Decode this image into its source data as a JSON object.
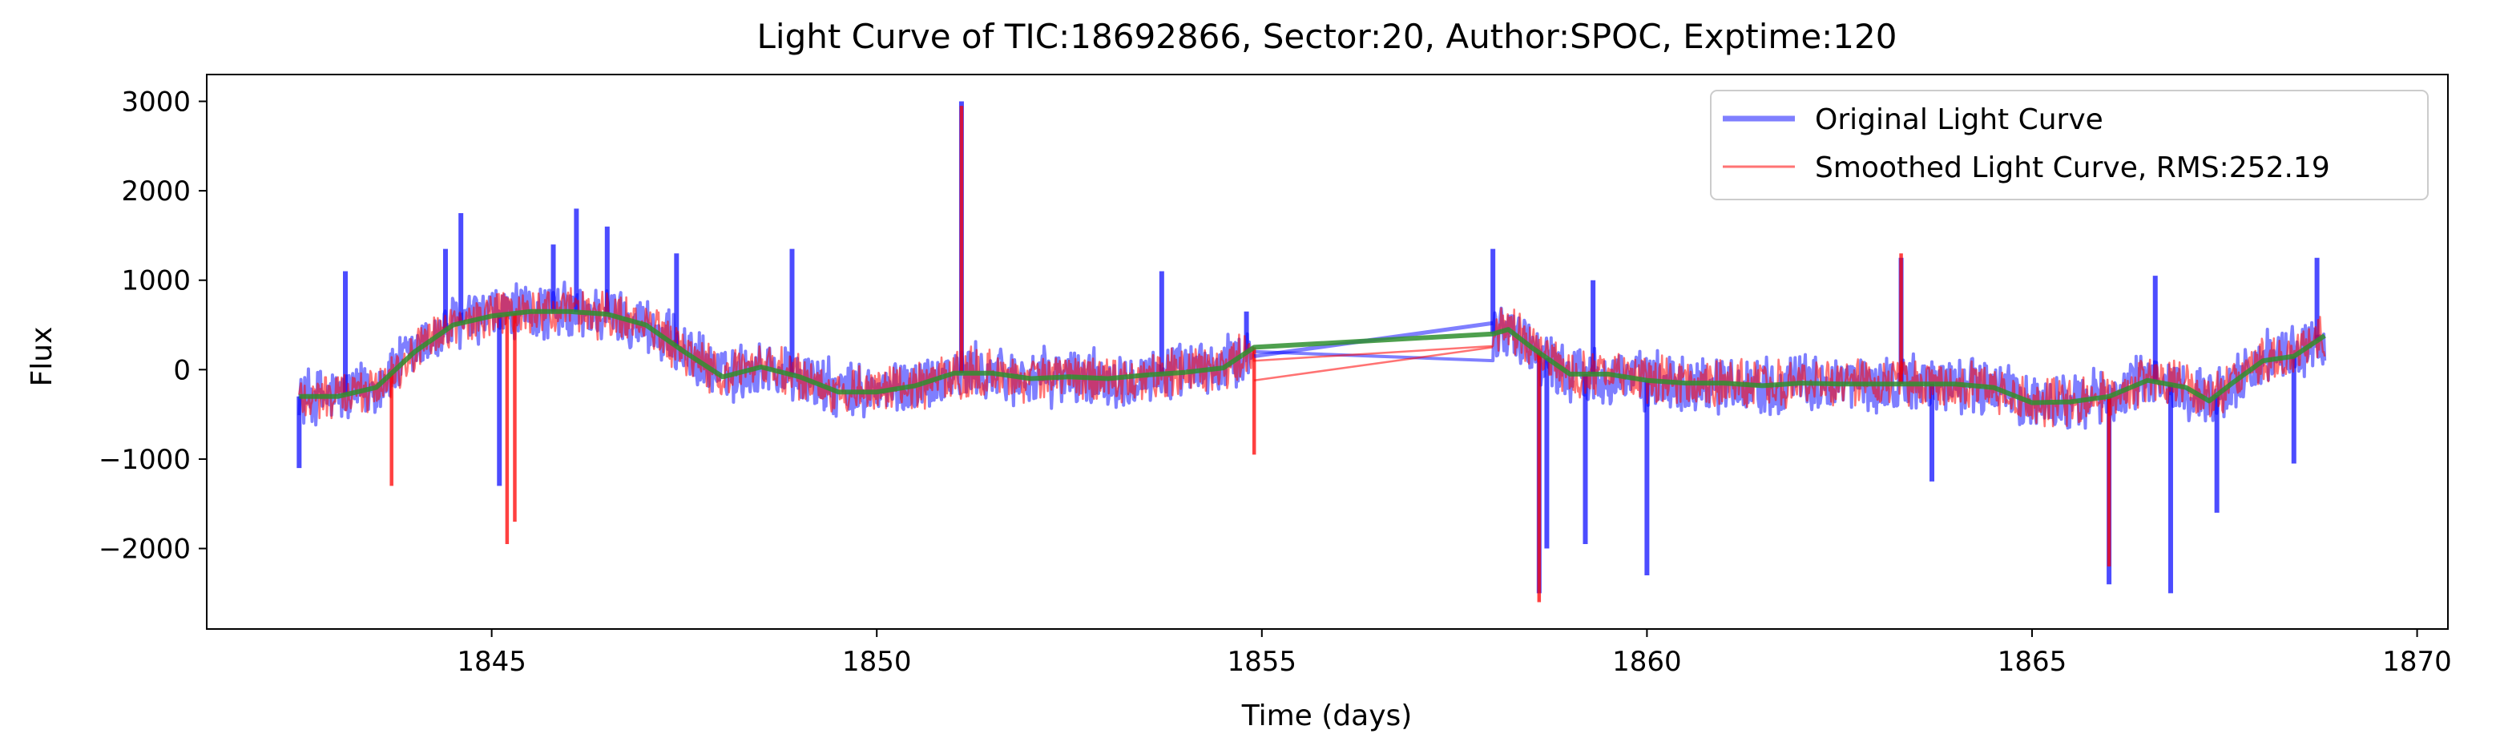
{
  "chart_data": {
    "type": "line",
    "title": "Light Curve of TIC:18692866, Sector:20, Author:SPOC, Exptime:120",
    "xlabel": "Time (days)",
    "ylabel": "Flux",
    "xlim": [
      1841.3,
      1870.4
    ],
    "ylim": [
      -2900,
      3300
    ],
    "xticks": [
      1845,
      1850,
      1855,
      1860,
      1865,
      1870
    ],
    "yticks": [
      -2000,
      -1000,
      0,
      1000,
      2000,
      3000
    ],
    "ytick_labels": [
      "−2000",
      "−1000",
      "0",
      "1000",
      "2000",
      "3000"
    ],
    "grid": false,
    "legend_position": "top-right",
    "segments": [
      {
        "t0": 1842.5,
        "t1": 1854.9
      },
      {
        "t0": 1858.0,
        "t1": 1868.8
      }
    ],
    "series": [
      {
        "name": "Original Light Curve",
        "role": "original",
        "color": "#0000ff",
        "opacity": 0.5,
        "noise_amplitude": 360,
        "spikes": [
          {
            "x": 1843.1,
            "y": 1100
          },
          {
            "x": 1844.4,
            "y": 1350
          },
          {
            "x": 1844.6,
            "y": 1750
          },
          {
            "x": 1845.8,
            "y": 1400
          },
          {
            "x": 1846.1,
            "y": 1800
          },
          {
            "x": 1846.5,
            "y": 1600
          },
          {
            "x": 1847.4,
            "y": 1300
          },
          {
            "x": 1848.9,
            "y": 1350
          },
          {
            "x": 1851.1,
            "y": 3000
          },
          {
            "x": 1853.7,
            "y": 1100
          },
          {
            "x": 1854.8,
            "y": 650
          },
          {
            "x": 1858.0,
            "y": 1350
          },
          {
            "x": 1859.3,
            "y": 1000
          },
          {
            "x": 1863.3,
            "y": 1250
          },
          {
            "x": 1866.6,
            "y": 1050
          },
          {
            "x": 1868.7,
            "y": 1250
          },
          {
            "x": 1842.5,
            "y": -1100
          },
          {
            "x": 1845.1,
            "y": -1300
          },
          {
            "x": 1858.6,
            "y": -2500
          },
          {
            "x": 1858.7,
            "y": -2000
          },
          {
            "x": 1859.2,
            "y": -1950
          },
          {
            "x": 1860.0,
            "y": -2300
          },
          {
            "x": 1863.7,
            "y": -1250
          },
          {
            "x": 1866.0,
            "y": -2400
          },
          {
            "x": 1866.8,
            "y": -2500
          },
          {
            "x": 1867.4,
            "y": -1600
          },
          {
            "x": 1868.4,
            "y": -1050
          }
        ]
      },
      {
        "name": "Smoothed Light Curve, RMS:252.19",
        "role": "smoothed",
        "color": "#ff0000",
        "opacity": 0.55,
        "noise_amplitude": 300,
        "spikes": [
          {
            "x": 1845.2,
            "y": -1950
          },
          {
            "x": 1845.3,
            "y": -1700
          },
          {
            "x": 1843.7,
            "y": -1300
          },
          {
            "x": 1851.1,
            "y": 2950
          },
          {
            "x": 1863.3,
            "y": 1300
          },
          {
            "x": 1858.6,
            "y": -2600
          },
          {
            "x": 1866.0,
            "y": -2200
          },
          {
            "x": 1854.9,
            "y": -950
          }
        ]
      },
      {
        "name": "",
        "role": "trend",
        "color": "#2f8f2f",
        "opacity": 0.85,
        "x": [
          1842.5,
          1843.0,
          1843.5,
          1844.0,
          1844.5,
          1845.0,
          1845.5,
          1846.0,
          1846.5,
          1847.0,
          1847.5,
          1848.0,
          1848.5,
          1849.0,
          1849.5,
          1850.0,
          1850.5,
          1851.0,
          1851.5,
          1852.0,
          1852.5,
          1853.0,
          1853.5,
          1854.0,
          1854.5,
          1854.9,
          1858.0,
          1858.2,
          1858.5,
          1859.0,
          1859.5,
          1860.0,
          1860.5,
          1861.0,
          1861.5,
          1862.0,
          1862.5,
          1863.0,
          1863.5,
          1864.0,
          1864.5,
          1865.0,
          1865.5,
          1866.0,
          1866.5,
          1867.0,
          1867.3,
          1867.6,
          1868.0,
          1868.4,
          1868.8
        ],
        "y": [
          -300,
          -300,
          -200,
          200,
          500,
          600,
          650,
          650,
          620,
          500,
          200,
          -80,
          30,
          -80,
          -250,
          -250,
          -180,
          -40,
          -40,
          -100,
          -80,
          -100,
          -60,
          -30,
          20,
          250,
          400,
          450,
          250,
          -50,
          -50,
          -120,
          -150,
          -150,
          -180,
          -150,
          -160,
          -160,
          -160,
          -160,
          -200,
          -370,
          -360,
          -300,
          -120,
          -200,
          -350,
          -150,
          100,
          150,
          380
        ]
      }
    ]
  }
}
